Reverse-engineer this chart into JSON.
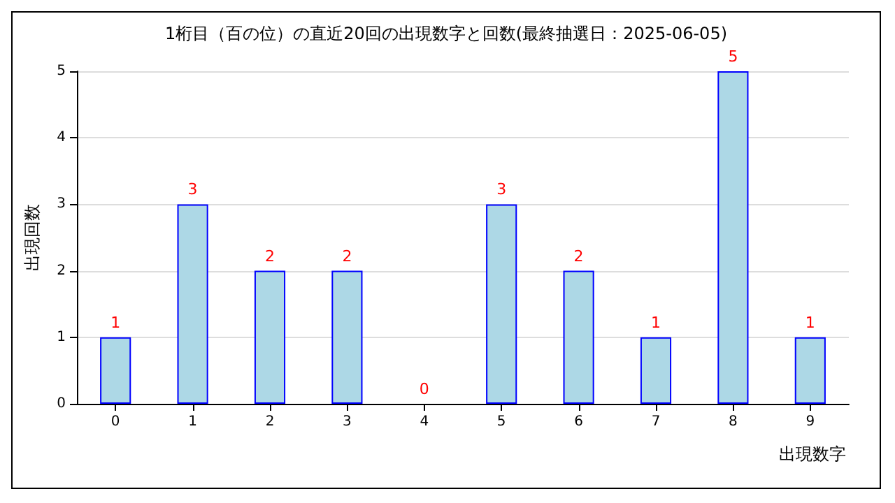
{
  "chart_data": {
    "type": "bar",
    "title": "1桁目（百の位）の直近20回の出現数字と回数(最終抽選日：2025-06-05)",
    "xlabel": "出現数字",
    "ylabel": "出現回数",
    "categories": [
      "0",
      "1",
      "2",
      "3",
      "4",
      "5",
      "6",
      "7",
      "8",
      "9"
    ],
    "values": [
      1,
      3,
      2,
      2,
      0,
      3,
      2,
      1,
      5,
      1
    ],
    "color": "#add8e6",
    "ylim": [
      0,
      5
    ],
    "yticks": [
      0,
      1,
      2,
      3,
      4,
      5
    ],
    "grid": "y",
    "data_labels": true
  }
}
